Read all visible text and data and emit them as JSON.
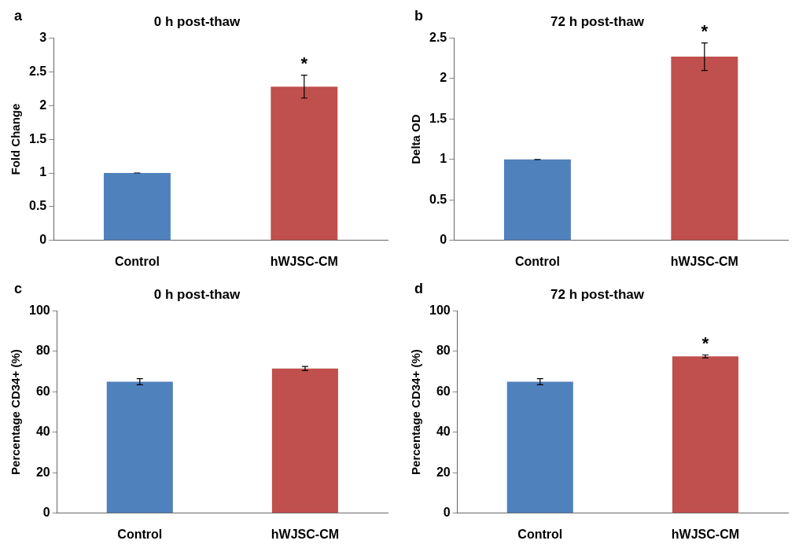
{
  "chart_data": [
    {
      "type": "bar",
      "title": "0 h post-thaw",
      "ylabel": "Fold Change",
      "categories": [
        "Control",
        "hWJSC-CM"
      ],
      "values": [
        1.0,
        2.28
      ],
      "errors": [
        0,
        0.17
      ],
      "colors": [
        "#4f81bd",
        "#c0504d"
      ],
      "ylim": [
        0,
        3
      ],
      "yticks": [
        0,
        0.5,
        1,
        1.5,
        2,
        2.5,
        3
      ],
      "grid": false,
      "annotations": [
        "a",
        "*"
      ]
    },
    {
      "type": "bar",
      "title": "72 h post-thaw",
      "ylabel": "Delta OD",
      "categories": [
        "Control",
        "hWJSC-CM"
      ],
      "values": [
        1.0,
        2.27
      ],
      "errors": [
        0,
        0.17
      ],
      "colors": [
        "#4f81bd",
        "#c0504d"
      ],
      "ylim": [
        0,
        2.5
      ],
      "yticks": [
        0,
        0.5,
        1,
        1.5,
        2,
        2.5
      ],
      "grid": false,
      "annotations": [
        "b",
        "*"
      ]
    },
    {
      "type": "bar",
      "title": "0 h post-thaw",
      "ylabel": "Percentage CD34+ (%)",
      "categories": [
        "Control",
        "hWJSC-CM"
      ],
      "values": [
        65,
        71.5
      ],
      "errors": [
        1.5,
        1
      ],
      "colors": [
        "#4f81bd",
        "#c0504d"
      ],
      "ylim": [
        0,
        100
      ],
      "yticks": [
        0,
        20,
        40,
        60,
        80,
        100
      ],
      "grid": false,
      "annotations": [
        "c"
      ]
    },
    {
      "type": "bar",
      "title": "72 h post-thaw",
      "ylabel": "Percentage CD34+ (%)",
      "categories": [
        "Control",
        "hWJSC-CM"
      ],
      "values": [
        65,
        77.5
      ],
      "errors": [
        1.5,
        0.7
      ],
      "colors": [
        "#4f81bd",
        "#c0504d"
      ],
      "ylim": [
        0,
        100
      ],
      "yticks": [
        0,
        20,
        40,
        60,
        80,
        100
      ],
      "grid": false,
      "annotations": [
        "d",
        "*"
      ]
    }
  ]
}
